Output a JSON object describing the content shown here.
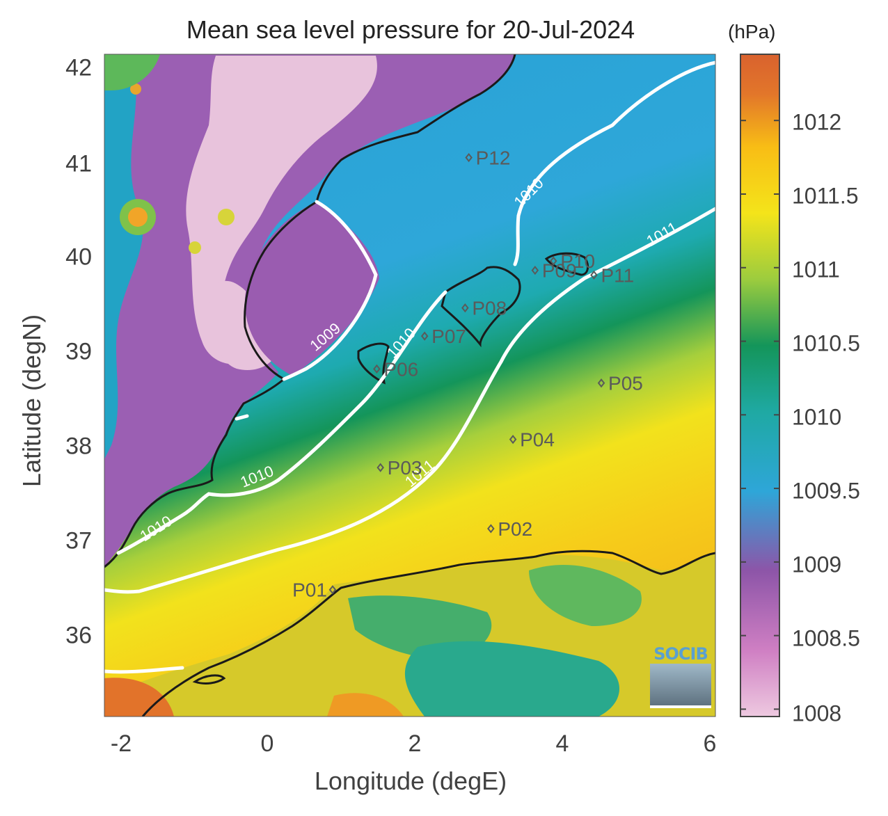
{
  "map": {
    "title": "Mean sea level pressure for 20-Jul-2024",
    "unit_label": "(hPa)",
    "xlabel": "Longitude (degE)",
    "ylabel": "Latitude (degN)",
    "x_ticks": [
      "-2",
      "0",
      "2",
      "4",
      "6"
    ],
    "y_ticks": [
      "42",
      "41",
      "40",
      "39",
      "38",
      "37",
      "36"
    ],
    "x_range": [
      -2.25,
      6.05
    ],
    "y_range": [
      35.15,
      42.2
    ],
    "colorbar": {
      "range": [
        1007.95,
        1012.45
      ],
      "ticks": [
        "1012",
        "1011.5",
        "1011",
        "1010.5",
        "1010",
        "1009.5",
        "1009",
        "1008.5",
        "1008"
      ],
      "colors": [
        "#eec9e0",
        "#cf7fc3",
        "#8d55a8",
        "#2ea6d8",
        "#1fa9a3",
        "#14955a",
        "#9ccc3e",
        "#f4e41a",
        "#f8bd15",
        "#e2762a",
        "#d9622e"
      ]
    },
    "contour_labels": [
      "1009",
      "1010",
      "1010",
      "1010",
      "1010",
      "1011",
      "1011"
    ],
    "stations": [
      {
        "name": "P01",
        "lon": 0.85,
        "lat": 36.5
      },
      {
        "name": "P02",
        "lon": 3.0,
        "lat": 37.15
      },
      {
        "name": "P03",
        "lon": 1.5,
        "lat": 37.8
      },
      {
        "name": "P04",
        "lon": 3.3,
        "lat": 38.1
      },
      {
        "name": "P05",
        "lon": 4.5,
        "lat": 38.7
      },
      {
        "name": "P06",
        "lon": 1.45,
        "lat": 38.85
      },
      {
        "name": "P07",
        "lon": 2.1,
        "lat": 39.2
      },
      {
        "name": "P08",
        "lon": 2.65,
        "lat": 39.5
      },
      {
        "name": "P09",
        "lon": 3.6,
        "lat": 39.9
      },
      {
        "name": "P10",
        "lon": 3.85,
        "lat": 40.0
      },
      {
        "name": "P11",
        "lon": 4.4,
        "lat": 39.85
      },
      {
        "name": "P12",
        "lon": 2.7,
        "lat": 41.1
      }
    ],
    "logo_text": "SOCIB"
  }
}
